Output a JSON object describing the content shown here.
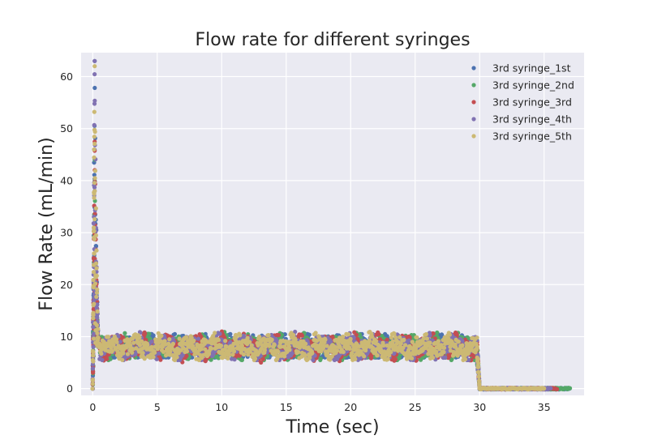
{
  "chart_data": {
    "type": "scatter",
    "title": "Flow rate for different syringes",
    "xlabel": "Time (sec)",
    "ylabel": "Flow Rate (mL/min)",
    "xlim": [
      -0.9,
      38.1
    ],
    "ylim": [
      -1.3,
      64.6
    ],
    "xticks": [
      0,
      5,
      10,
      15,
      20,
      25,
      30,
      35
    ],
    "yticks": [
      0,
      10,
      20,
      30,
      40,
      50,
      60
    ],
    "grid": true,
    "legend_position": "top-right",
    "background": "#EAEAF2",
    "series": [
      {
        "name": "3rd syringe_1st",
        "color": "#4C72B0",
        "t_end": 37.0,
        "peak": 63.0,
        "low": 6.0,
        "high": 10.5,
        "mean": 8.0
      },
      {
        "name": "3rd syringe_2nd",
        "color": "#55A868",
        "t_end": 37.0,
        "peak": 44.0,
        "low": 5.5,
        "high": 11.5,
        "mean": 8.0
      },
      {
        "name": "3rd syringe_3rd",
        "color": "#C44E52",
        "t_end": 36.0,
        "peak": 47.5,
        "low": 5.0,
        "high": 11.0,
        "mean": 8.0
      },
      {
        "name": "3rd syringe_4th",
        "color": "#8172B2",
        "t_end": 35.5,
        "peak": 63.0,
        "low": 5.5,
        "high": 11.0,
        "mean": 8.0
      },
      {
        "name": "3rd syringe_5th",
        "color": "#CCB974",
        "t_end": 35.0,
        "peak": 62.0,
        "low": 5.5,
        "high": 12.0,
        "mean": 8.0
      }
    ],
    "phases": {
      "ramp_start": 0.0,
      "peak_time": 0.15,
      "plateau_start": 0.5,
      "plateau_end": 29.8,
      "drop_end": 30.0,
      "tail_value": 0.0
    }
  }
}
